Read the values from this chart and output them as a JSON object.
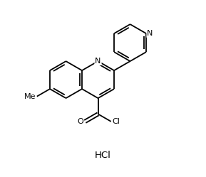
{
  "background_color": "#ffffff",
  "bond_color": "#000000",
  "bond_lw": 1.3,
  "text_color": "#000000",
  "hcl_text": "HCl",
  "N_label": "N",
  "O_label": "O",
  "Cl_label": "Cl",
  "Me_label": "Me"
}
